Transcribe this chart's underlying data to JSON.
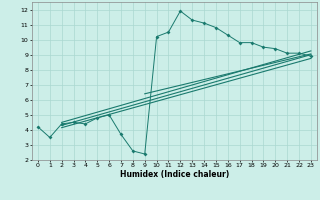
{
  "xlabel": "Humidex (Indice chaleur)",
  "ylabel": "",
  "bg_color": "#cceee8",
  "line_color": "#1a7a6e",
  "grid_color": "#aad8d0",
  "xlim": [
    -0.5,
    23.5
  ],
  "ylim": [
    2,
    12.5
  ],
  "xtick_labels": [
    "0",
    "1",
    "2",
    "3",
    "4",
    "5",
    "6",
    "7",
    "8",
    "9",
    "10",
    "11",
    "12",
    "13",
    "14",
    "15",
    "16",
    "17",
    "18",
    "19",
    "20",
    "21",
    "22",
    "23"
  ],
  "xtick_vals": [
    0,
    1,
    2,
    3,
    4,
    5,
    6,
    7,
    8,
    9,
    10,
    11,
    12,
    13,
    14,
    15,
    16,
    17,
    18,
    19,
    20,
    21,
    22,
    23
  ],
  "ytick_vals": [
    2,
    3,
    4,
    5,
    6,
    7,
    8,
    9,
    10,
    11,
    12
  ],
  "scatter_x": [
    0,
    1,
    2,
    3,
    4,
    5,
    6,
    7,
    8,
    9,
    10,
    11,
    12,
    13,
    14,
    15,
    16,
    17,
    18,
    19,
    20,
    21,
    22,
    23
  ],
  "scatter_y": [
    4.2,
    3.5,
    4.4,
    4.5,
    4.4,
    4.8,
    5.0,
    3.7,
    2.6,
    2.4,
    10.2,
    10.5,
    11.9,
    11.3,
    11.1,
    10.8,
    10.3,
    9.8,
    9.8,
    9.5,
    9.4,
    9.1,
    9.1,
    8.9
  ],
  "trend_lines": [
    {
      "x": [
        2,
        23
      ],
      "y": [
        4.3,
        9.0
      ]
    },
    {
      "x": [
        2,
        23
      ],
      "y": [
        4.5,
        9.25
      ]
    },
    {
      "x": [
        2,
        23
      ],
      "y": [
        4.15,
        8.75
      ]
    },
    {
      "x": [
        9,
        23
      ],
      "y": [
        6.4,
        9.05
      ]
    }
  ]
}
